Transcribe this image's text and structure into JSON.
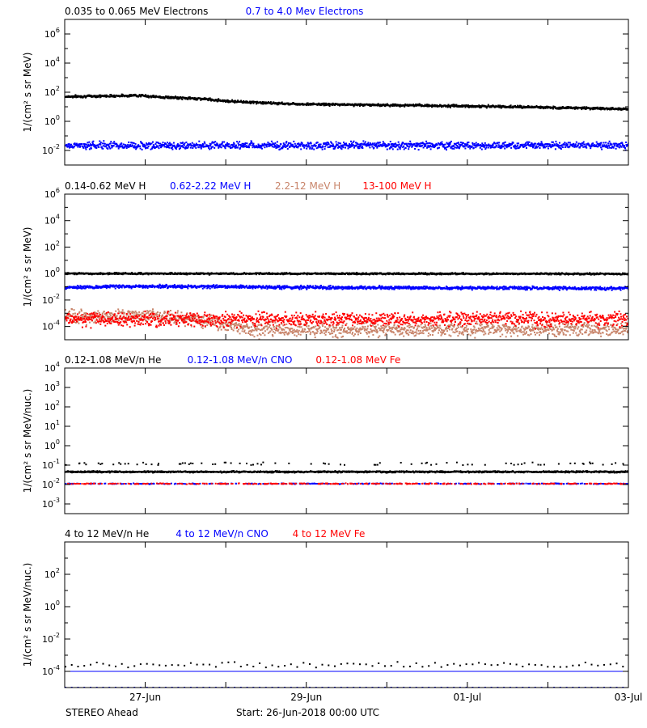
{
  "chart_data": [
    {
      "type": "scatter",
      "ylabel": "1/(cm² s sr MeV)",
      "yscale": "log",
      "ylim_exp": [
        -3,
        7
      ],
      "ytick_exps": [
        -2,
        0,
        2,
        4,
        6
      ],
      "legend": [
        {
          "name": "0.035 to 0.065 MeV Electrons",
          "color": "#000000"
        },
        {
          "name": "0.7 to 4.0 Mev Electrons",
          "color": "#0000ff"
        }
      ],
      "series": [
        {
          "name": "0.035 to 0.065 MeV Electrons",
          "color": "#000000",
          "x": [
            0,
            0.5,
            0.9,
            1.2,
            1.7,
            2.0,
            2.5,
            3,
            3.5,
            4,
            4.5,
            5,
            5.5,
            6,
            6.5,
            7
          ],
          "y": [
            50,
            55,
            60,
            45,
            35,
            25,
            18,
            15,
            14,
            13,
            12,
            11,
            10,
            9,
            8,
            7
          ],
          "noise": 0.04
        },
        {
          "name": "0.7 to 4.0 Mev Electrons",
          "color": "#0000ff",
          "x": [
            0,
            7
          ],
          "y": [
            0.022,
            0.022
          ],
          "noise": 0.12
        }
      ]
    },
    {
      "type": "scatter",
      "ylabel": "1/(cm² s sr MeV)",
      "yscale": "log",
      "ylim_exp": [
        -5,
        6
      ],
      "ytick_exps": [
        -4,
        -2,
        0,
        2,
        4,
        6
      ],
      "legend": [
        {
          "name": "0.14-0.62 MeV H",
          "color": "#000000"
        },
        {
          "name": "0.62-2.22 MeV H",
          "color": "#0000ff"
        },
        {
          "name": "2.2-12 MeV H",
          "color": "#c8846a"
        },
        {
          "name": "13-100 MeV H",
          "color": "#ff0000"
        }
      ],
      "series": [
        {
          "name": "0.14-0.62 MeV H",
          "color": "#000000",
          "x": [
            0,
            7
          ],
          "y": [
            1.0,
            0.95
          ],
          "noise": 0.03
        },
        {
          "name": "0.62-2.22 MeV H",
          "color": "#0000ff",
          "x": [
            0,
            1,
            2,
            3,
            4,
            5,
            6,
            7
          ],
          "y": [
            0.09,
            0.11,
            0.1,
            0.09,
            0.085,
            0.08,
            0.08,
            0.075
          ],
          "noise": 0.06
        },
        {
          "name": "2.2-12 MeV H",
          "color": "#c8846a",
          "x": [
            0,
            1,
            1.7,
            2.3,
            7
          ],
          "y": [
            0.0005,
            0.0007,
            0.0003,
            6e-05,
            6e-05
          ],
          "noise": 0.25
        },
        {
          "name": "13-100 MeV H",
          "color": "#ff0000",
          "x": [
            0,
            7
          ],
          "y": [
            0.00035,
            0.00035
          ],
          "noise": 0.25
        }
      ]
    },
    {
      "type": "scatter",
      "ylabel": "1/(cm² s sr MeV/nuc.)",
      "yscale": "log",
      "ylim_exp": [
        -3.5,
        4
      ],
      "ytick_exps": [
        -3,
        -2,
        -1,
        0,
        1,
        2,
        3,
        4
      ],
      "legend": [
        {
          "name": "0.12-1.08 MeV/n He",
          "color": "#000000"
        },
        {
          "name": "0.12-1.08 MeV/n CNO",
          "color": "#0000ff"
        },
        {
          "name": "0.12-1.08 MeV Fe",
          "color": "#ff0000"
        }
      ],
      "series": [
        {
          "name": "0.12-1.08 MeV/n He",
          "color": "#000000",
          "x": [
            0,
            7
          ],
          "y": [
            0.045,
            0.045
          ],
          "noise": 0.02,
          "sparse_high": 0.1
        },
        {
          "name": "0.12-1.08 MeV/n CNO",
          "color": "#0000ff",
          "x": [
            0,
            7
          ],
          "y": [
            0.011,
            0.011
          ],
          "noise": 0.01,
          "gappy": true
        },
        {
          "name": "0.12-1.08 MeV Fe",
          "color": "#ff0000",
          "x": [
            0,
            7
          ],
          "y": [
            0.011,
            0.011
          ],
          "noise": 0.01,
          "gappy": true
        }
      ]
    },
    {
      "type": "scatter",
      "ylabel": "1/(cm² s sr MeV/nuc.)",
      "yscale": "log",
      "ylim_exp": [
        -5,
        4
      ],
      "ytick_exps": [
        -4,
        -2,
        0,
        2
      ],
      "legend": [
        {
          "name": "4 to 12 MeV/n He",
          "color": "#000000"
        },
        {
          "name": "4 to 12 MeV/n CNO",
          "color": "#0000ff"
        },
        {
          "name": "4 to 12 MeV Fe",
          "color": "#ff0000"
        }
      ],
      "series": [
        {
          "name": "4 to 12 MeV/n CNO",
          "color": "#0000ff",
          "x": [
            0,
            7
          ],
          "y": [
            0.0001,
            0.0001
          ],
          "noise": 0.0,
          "line": true
        },
        {
          "name": "4 to 12 MeV/n He",
          "color": "#000000",
          "x": [
            0,
            7
          ],
          "y": [
            0.00025,
            0.00025
          ],
          "noise": 0.08,
          "sparse": true
        },
        {
          "name": "4 to 12 MeV/n CNO low",
          "color": "#0000ff",
          "x": [
            0,
            7
          ],
          "y": [
            1e-05,
            1e-05
          ],
          "noise": 0.0,
          "sparse": true
        }
      ]
    }
  ],
  "xaxis": {
    "xlim_days": [
      0,
      7
    ],
    "ticks": [
      {
        "day": 1,
        "label": "27-Jun"
      },
      {
        "day": 3,
        "label": "29-Jun"
      },
      {
        "day": 5,
        "label": "01-Jul"
      },
      {
        "day": 7,
        "label": "03-Jul"
      }
    ]
  },
  "footer": {
    "spacecraft": "STEREO Ahead",
    "start": "Start: 26-Jun-2018 00:00 UTC"
  }
}
